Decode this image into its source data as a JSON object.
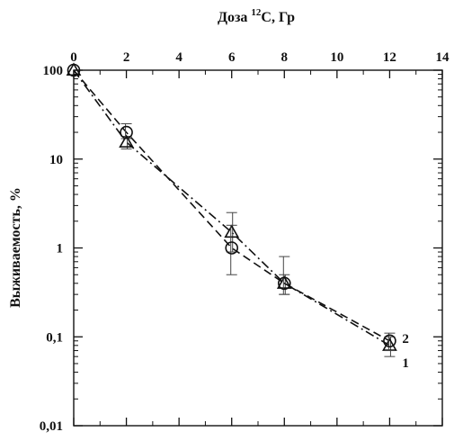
{
  "chart_data": {
    "type": "line",
    "title": "Доза ¹²C, Гр",
    "title_parts": {
      "prefix": "Доза ",
      "sup": "12",
      "suffix": "C, Гр"
    },
    "xlabel": "Доза ¹²C, Гр",
    "ylabel": "Выживаемость, %",
    "x_axis_position": "top",
    "xlim": [
      0,
      14
    ],
    "ylim": [
      0.01,
      100
    ],
    "y_scale": "log",
    "x_ticks": [
      0,
      2,
      4,
      6,
      8,
      10,
      12,
      14
    ],
    "x_tick_labels": [
      "0",
      "2",
      "4",
      "6",
      "8",
      "10",
      "12",
      "14"
    ],
    "y_ticks": [
      0.01,
      0.1,
      1,
      10,
      100
    ],
    "y_tick_labels": [
      "0,01",
      "0,1",
      "1",
      "10",
      "100"
    ],
    "grid": false,
    "series": [
      {
        "name": "1",
        "marker": "triangle",
        "line_style": "dash-dot",
        "x": [
          0,
          2,
          6,
          8,
          12
        ],
        "y": [
          100,
          15.5,
          1.5,
          0.4,
          0.08
        ],
        "err_low": [
          100,
          13,
          0.9,
          0.3,
          0.06
        ],
        "err_high": [
          100,
          18,
          2.5,
          0.5,
          0.1
        ]
      },
      {
        "name": "2",
        "marker": "circle",
        "line_style": "dashed",
        "x": [
          0,
          2,
          6,
          8,
          12
        ],
        "y": [
          100,
          20,
          1.0,
          0.4,
          0.09
        ],
        "err_low": [
          100,
          17,
          0.5,
          0.3,
          0.07
        ],
        "err_high": [
          100,
          25,
          1.8,
          0.8,
          0.11
        ]
      }
    ],
    "colors": {
      "ink": "#111111",
      "background": "#ffffff"
    }
  }
}
